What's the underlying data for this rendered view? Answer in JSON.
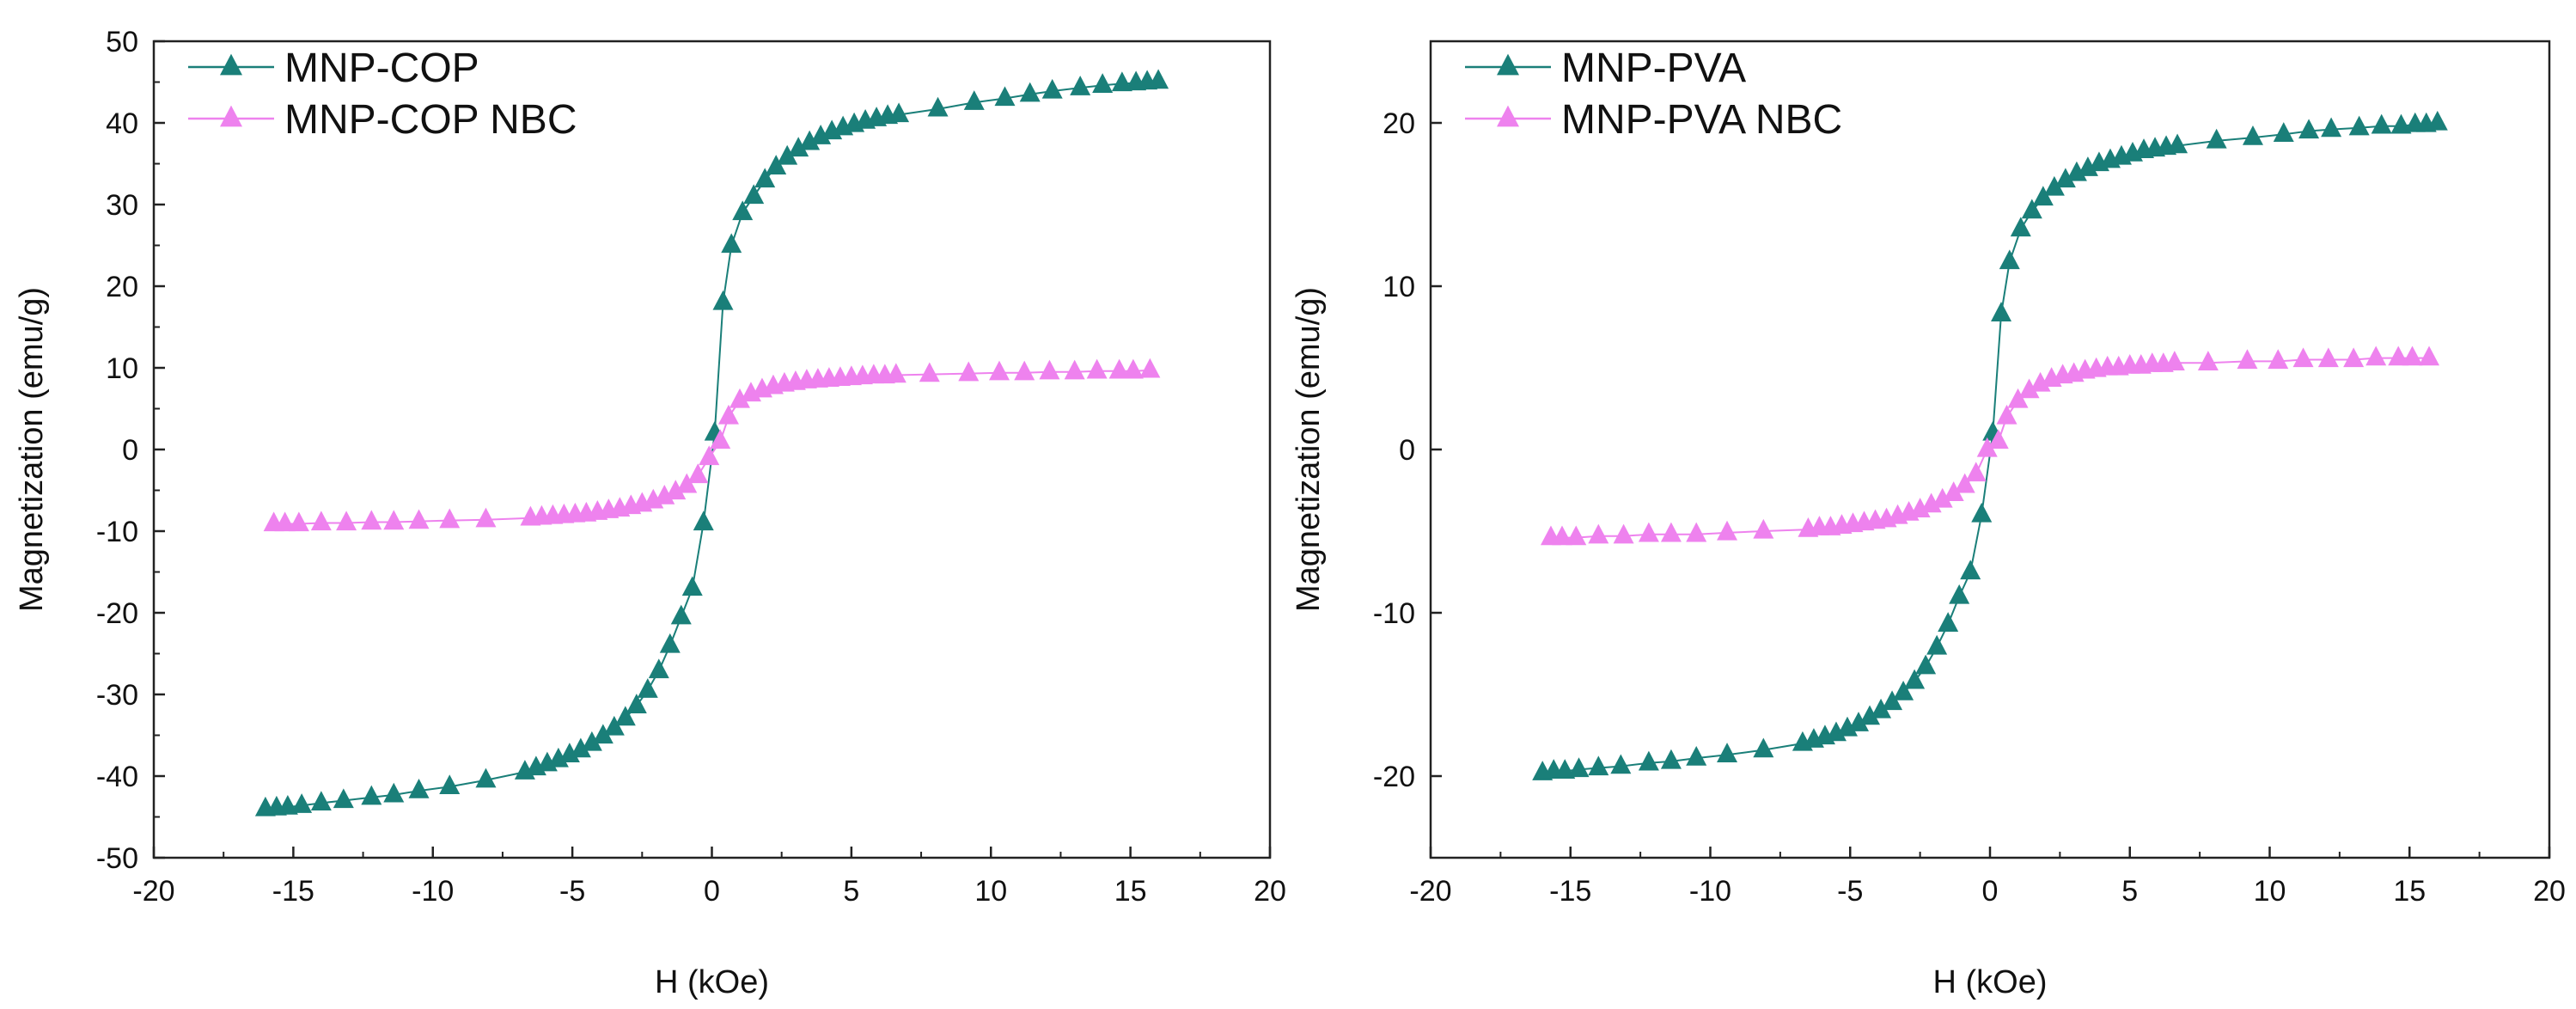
{
  "chart_data": [
    {
      "type": "scatter",
      "id": "left",
      "xlabel": "H (kOe)",
      "ylabel": "Magnetization (emu/g)",
      "xlim": [
        -20,
        20
      ],
      "ylim": [
        -50,
        50
      ],
      "xticks": [
        -20,
        -15,
        -10,
        -5,
        0,
        5,
        10,
        15,
        20
      ],
      "yticks": [
        -50,
        -40,
        -30,
        -20,
        -10,
        0,
        10,
        20,
        30,
        40,
        50
      ],
      "legend_position": "top-left",
      "series": [
        {
          "name": "MNP-COP",
          "color": "#1a7f79",
          "marker": "triangle",
          "x": [
            -16,
            -15.6,
            -15.2,
            -14.7,
            -14,
            -13.2,
            -12.2,
            -11.4,
            -10.5,
            -9.4,
            -8.1,
            -6.7,
            -6.3,
            -5.9,
            -5.5,
            -5.1,
            -4.7,
            -4.3,
            -3.9,
            -3.5,
            -3.1,
            -2.7,
            -2.3,
            -1.9,
            -1.5,
            -1.1,
            -0.7,
            -0.3,
            0.1,
            0.4,
            0.7,
            1.1,
            1.5,
            1.9,
            2.3,
            2.7,
            3.1,
            3.5,
            3.9,
            4.3,
            4.7,
            5.1,
            5.5,
            5.9,
            6.3,
            6.7,
            8.1,
            9.4,
            10.5,
            11.4,
            12.2,
            13.2,
            14,
            14.7,
            15.2,
            15.6,
            16
          ],
          "y": [
            -44,
            -43.9,
            -43.8,
            -43.6,
            -43.3,
            -43,
            -42.6,
            -42.3,
            -41.8,
            -41.3,
            -40.5,
            -39.5,
            -39,
            -38.5,
            -38,
            -37.4,
            -36.8,
            -36,
            -35.1,
            -34.1,
            -32.9,
            -31.4,
            -29.5,
            -27.1,
            -24,
            -20.5,
            -17,
            -9,
            2,
            18,
            25,
            29,
            31,
            33,
            34.6,
            35.8,
            36.8,
            37.6,
            38.3,
            38.9,
            39.4,
            39.8,
            40.2,
            40.5,
            40.8,
            41,
            41.7,
            42.5,
            43,
            43.5,
            43.9,
            44.3,
            44.6,
            44.8,
            44.9,
            45,
            45.1
          ]
        },
        {
          "name": "MNP-COP NBC",
          "color": "#ee82ee",
          "marker": "triangle",
          "x": [
            -15.7,
            -15.3,
            -14.8,
            -14,
            -13.1,
            -12.2,
            -11.4,
            -10.5,
            -9.4,
            -8.1,
            -6.5,
            -6.1,
            -5.7,
            -5.3,
            -4.9,
            -4.5,
            -4.1,
            -3.7,
            -3.3,
            -2.9,
            -2.5,
            -2.1,
            -1.7,
            -1.3,
            -0.9,
            -0.5,
            -0.1,
            0.3,
            0.6,
            1,
            1.4,
            1.8,
            2.2,
            2.6,
            3,
            3.4,
            3.8,
            4.2,
            4.6,
            5,
            5.4,
            5.8,
            6.2,
            6.6,
            7.8,
            9.2,
            10.3,
            11.2,
            12.1,
            13,
            13.8,
            14.6,
            15.1,
            15.7
          ],
          "y": [
            -9.1,
            -9.1,
            -9.1,
            -9,
            -9,
            -8.9,
            -8.9,
            -8.8,
            -8.7,
            -8.6,
            -8.4,
            -8.3,
            -8.2,
            -8.1,
            -8,
            -7.9,
            -7.7,
            -7.5,
            -7.3,
            -7,
            -6.7,
            -6.3,
            -5.8,
            -5.2,
            -4.4,
            -3.2,
            -1,
            1,
            4,
            6,
            6.8,
            7.3,
            7.7,
            8,
            8.2,
            8.4,
            8.5,
            8.6,
            8.7,
            8.8,
            8.9,
            9,
            9,
            9.1,
            9.2,
            9.3,
            9.4,
            9.4,
            9.5,
            9.5,
            9.6,
            9.6,
            9.6,
            9.7
          ]
        }
      ]
    },
    {
      "type": "scatter",
      "id": "right",
      "xlabel": "H (kOe)",
      "ylabel": "Magnetization (emu/g)",
      "xlim": [
        -20,
        20
      ],
      "ylim": [
        -25,
        25
      ],
      "xticks": [
        -20,
        -15,
        -10,
        -5,
        0,
        5,
        10,
        15,
        20
      ],
      "yticks": [
        -20,
        -10,
        0,
        10,
        20
      ],
      "legend_position": "top-left",
      "series": [
        {
          "name": "MNP-PVA",
          "color": "#1a7f79",
          "marker": "triangle",
          "x": [
            -16,
            -15.6,
            -15.2,
            -14.7,
            -14,
            -13.2,
            -12.2,
            -11.4,
            -10.5,
            -9.4,
            -8.1,
            -6.7,
            -6.3,
            -5.9,
            -5.5,
            -5.1,
            -4.7,
            -4.3,
            -3.9,
            -3.5,
            -3.1,
            -2.7,
            -2.3,
            -1.9,
            -1.5,
            -1.1,
            -0.7,
            -0.3,
            0.1,
            0.4,
            0.7,
            1.1,
            1.5,
            1.9,
            2.3,
            2.7,
            3.1,
            3.5,
            3.9,
            4.3,
            4.7,
            5.1,
            5.5,
            5.9,
            6.3,
            6.7,
            8.1,
            9.4,
            10.5,
            11.4,
            12.2,
            13.2,
            14,
            14.7,
            15.2,
            15.6,
            16
          ],
          "y": [
            -19.8,
            -19.7,
            -19.7,
            -19.6,
            -19.5,
            -19.4,
            -19.2,
            -19.1,
            -18.9,
            -18.7,
            -18.4,
            -18,
            -17.8,
            -17.6,
            -17.4,
            -17.1,
            -16.8,
            -16.4,
            -16,
            -15.5,
            -14.9,
            -14.2,
            -13.3,
            -12.1,
            -10.7,
            -9,
            -7.5,
            -4,
            1,
            8.3,
            11.5,
            13.5,
            14.6,
            15.4,
            16,
            16.5,
            16.9,
            17.2,
            17.5,
            17.7,
            17.9,
            18.1,
            18.3,
            18.4,
            18.5,
            18.6,
            18.9,
            19.1,
            19.3,
            19.5,
            19.6,
            19.7,
            19.8,
            19.8,
            19.9,
            19.9,
            20
          ]
        },
        {
          "name": "MNP-PVA NBC",
          "color": "#ee82ee",
          "marker": "triangle",
          "x": [
            -15.7,
            -15.3,
            -14.8,
            -14,
            -13.1,
            -12.2,
            -11.4,
            -10.5,
            -9.4,
            -8.1,
            -6.5,
            -6.1,
            -5.7,
            -5.3,
            -4.9,
            -4.5,
            -4.1,
            -3.7,
            -3.3,
            -2.9,
            -2.5,
            -2.1,
            -1.7,
            -1.3,
            -0.9,
            -0.5,
            -0.1,
            0.3,
            0.6,
            1,
            1.4,
            1.8,
            2.2,
            2.6,
            3,
            3.4,
            3.8,
            4.2,
            4.6,
            5,
            5.4,
            5.8,
            6.2,
            6.6,
            7.8,
            9.2,
            10.3,
            11.2,
            12.1,
            13,
            13.8,
            14.6,
            15.1,
            15.7
          ],
          "y": [
            -5.4,
            -5.4,
            -5.4,
            -5.3,
            -5.3,
            -5.2,
            -5.2,
            -5.2,
            -5.1,
            -5,
            -4.9,
            -4.8,
            -4.8,
            -4.7,
            -4.6,
            -4.5,
            -4.4,
            -4.3,
            -4.1,
            -3.9,
            -3.7,
            -3.4,
            -3.1,
            -2.7,
            -2.2,
            -1.5,
            0,
            0.5,
            2,
            3,
            3.6,
            4,
            4.3,
            4.5,
            4.6,
            4.8,
            4.9,
            5,
            5,
            5.1,
            5.1,
            5.2,
            5.2,
            5.3,
            5.3,
            5.4,
            5.4,
            5.5,
            5.5,
            5.5,
            5.6,
            5.6,
            5.6,
            5.6
          ]
        }
      ]
    }
  ]
}
